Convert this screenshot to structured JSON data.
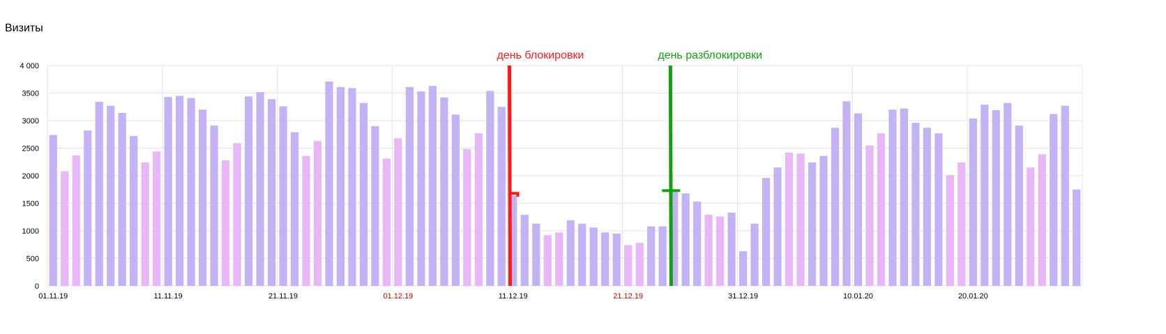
{
  "chart_data": {
    "type": "bar",
    "title": "Визиты",
    "ylim": [
      0,
      4000
    ],
    "y_ticks": [
      0,
      500,
      1000,
      1500,
      2000,
      2500,
      3000,
      3500,
      4000
    ],
    "y_tick_labels": [
      "0",
      "500",
      "1000",
      "1500",
      "2000",
      "2500",
      "3000",
      "3500",
      "4 000"
    ],
    "grid": true,
    "x_start": "01.11.19",
    "x_labels": [
      {
        "label": "01.11.19",
        "index": 0,
        "color": "#000000"
      },
      {
        "label": "11.11.19",
        "index": 10,
        "color": "#000000"
      },
      {
        "label": "21.11.19",
        "index": 20,
        "color": "#000000"
      },
      {
        "label": "01.12.19",
        "index": 30,
        "color": "#cc0000"
      },
      {
        "label": "11.12.19",
        "index": 40,
        "color": "#000000"
      },
      {
        "label": "21.12.19",
        "index": 50,
        "color": "#cc0000"
      },
      {
        "label": "31.12.19",
        "index": 60,
        "color": "#000000"
      },
      {
        "label": "10.01.20",
        "index": 70,
        "color": "#000000"
      },
      {
        "label": "20.01.20",
        "index": 80,
        "color": "#000000"
      }
    ],
    "values": [
      2740,
      2080,
      2370,
      2820,
      3340,
      3270,
      3140,
      2720,
      2240,
      2440,
      3430,
      3450,
      3410,
      3200,
      2910,
      2280,
      2590,
      3440,
      3520,
      3390,
      3260,
      2790,
      2360,
      2630,
      3710,
      3610,
      3590,
      3320,
      2900,
      2310,
      2680,
      3610,
      3530,
      3630,
      3420,
      3110,
      2480,
      2770,
      3540,
      3250,
      1640,
      1290,
      1130,
      920,
      970,
      1190,
      1130,
      1060,
      970,
      950,
      740,
      780,
      1080,
      1080,
      1700,
      1680,
      1530,
      1290,
      1260,
      1330,
      630,
      1130,
      1960,
      2150,
      2420,
      2400,
      2240,
      2360,
      2870,
      3350,
      3130,
      2550,
      2770,
      3200,
      3220,
      2960,
      2870,
      2770,
      2010,
      2240,
      3040,
      3290,
      3190,
      3320,
      2910,
      2150,
      2390,
      3120,
      3270,
      1750
    ],
    "weekend_indices": [
      1,
      2,
      8,
      9,
      15,
      16,
      22,
      23,
      29,
      30,
      36,
      37,
      43,
      44,
      50,
      51,
      57,
      58,
      64,
      65,
      71,
      72,
      78,
      79,
      85,
      86
    ],
    "colors": {
      "weekday": "#c3b3f5",
      "weekend": "#e8b7f5",
      "grid": "#e4e4e4"
    },
    "annotations": [
      {
        "text": "день блокировки",
        "color": "#ff1a1a",
        "index": 40,
        "at_value": 1680,
        "tick_side": "right"
      },
      {
        "text": "день разблокировки",
        "color": "#12a012",
        "index": 54,
        "at_value": 1730,
        "tick_side": "both"
      }
    ]
  }
}
